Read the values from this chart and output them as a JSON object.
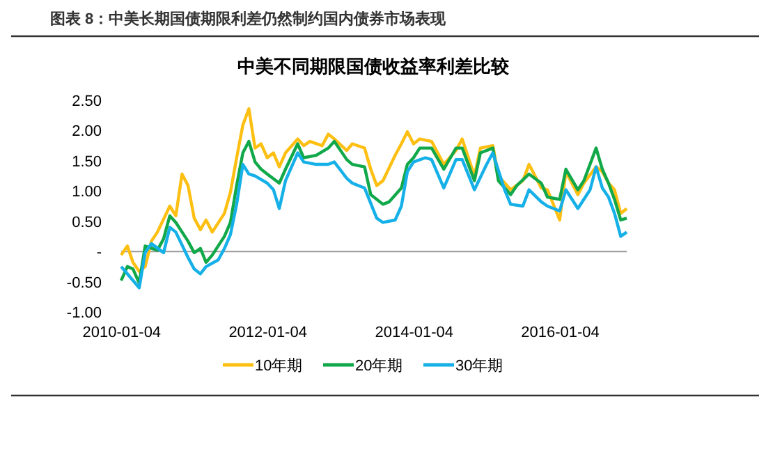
{
  "chart_data": {
    "type": "line",
    "title": "图表 8：中美长期国债期限利差仍然制约国内债券市场表现",
    "subtitle": "中美不同期限国债收益率利差比较",
    "legend": "bottom",
    "xlim": [
      "2010-01",
      "2016-12"
    ],
    "xticks": [
      "2010-01-04",
      "2012-01-04",
      "2014-01-04",
      "2016-01-04"
    ],
    "ylim": [
      -1,
      2.5
    ],
    "yticks": [
      {
        "value": -1,
        "label": "-1.00"
      },
      {
        "value": -0.5,
        "label": "-0.50"
      },
      {
        "value": 0,
        "label": "-"
      },
      {
        "value": 0.5,
        "label": "0.50"
      },
      {
        "value": 1,
        "label": "1.00"
      },
      {
        "value": 1.5,
        "label": "1.50"
      },
      {
        "value": 2,
        "label": "2.00"
      },
      {
        "value": 2.5,
        "label": "2.50"
      }
    ],
    "series": [
      {
        "name": "10年期",
        "color": "#fdbf12",
        "x": [
          "2010-01",
          "2010-02",
          "2010-03",
          "2010-04",
          "2010-05",
          "2010-06",
          "2010-07",
          "2010-09",
          "2010-10",
          "2010-11",
          "2010-12",
          "2011-01",
          "2011-02",
          "2011-03",
          "2011-04",
          "2011-06",
          "2011-07",
          "2011-08",
          "2011-09",
          "2011-10",
          "2011-11",
          "2011-12",
          "2012-01",
          "2012-02",
          "2012-03",
          "2012-04",
          "2012-06",
          "2012-07",
          "2012-08",
          "2012-10",
          "2012-11",
          "2012-12",
          "2013-02",
          "2013-03",
          "2013-05",
          "2013-06",
          "2013-07",
          "2013-08",
          "2013-10",
          "2013-11",
          "2013-12",
          "2014-01",
          "2014-02",
          "2014-04",
          "2014-06",
          "2014-08",
          "2014-09",
          "2014-11",
          "2014-12",
          "2015-02",
          "2015-03",
          "2015-05",
          "2015-07",
          "2015-08",
          "2015-10",
          "2015-11",
          "2016-01",
          "2016-02",
          "2016-04",
          "2016-05",
          "2016-07",
          "2016-08",
          "2016-09",
          "2016-10",
          "2016-11",
          "2016-12"
        ],
        "values": [
          -0.06,
          0.09,
          -0.18,
          -0.33,
          -0.25,
          0.17,
          0.32,
          0.75,
          0.59,
          1.28,
          1.09,
          0.55,
          0.36,
          0.52,
          0.32,
          0.63,
          0.98,
          1.55,
          2.09,
          2.36,
          1.71,
          1.78,
          1.55,
          1.63,
          1.4,
          1.63,
          1.86,
          1.75,
          1.82,
          1.75,
          1.94,
          1.86,
          1.67,
          1.78,
          1.71,
          1.36,
          1.09,
          1.17,
          1.59,
          1.78,
          1.98,
          1.78,
          1.86,
          1.82,
          1.44,
          1.67,
          1.86,
          1.25,
          1.71,
          1.75,
          1.25,
          1.02,
          1.17,
          1.44,
          1.05,
          1.02,
          0.52,
          1.32,
          0.94,
          1.13,
          1.4,
          1.32,
          1.13,
          1.02,
          0.63,
          0.71
        ]
      },
      {
        "name": "20年期",
        "color": "#11a84a",
        "x": [
          "2010-01",
          "2010-02",
          "2010-03",
          "2010-04",
          "2010-05",
          "2010-07",
          "2010-08",
          "2010-09",
          "2010-10",
          "2010-12",
          "2011-01",
          "2011-02",
          "2011-03",
          "2011-04",
          "2011-06",
          "2011-07",
          "2011-08",
          "2011-09",
          "2011-10",
          "2011-11",
          "2011-12",
          "2012-01",
          "2012-03",
          "2012-04",
          "2012-06",
          "2012-07",
          "2012-09",
          "2012-11",
          "2012-12",
          "2013-02",
          "2013-03",
          "2013-05",
          "2013-06",
          "2013-08",
          "2013-09",
          "2013-11",
          "2013-12",
          "2014-01",
          "2014-02",
          "2014-04",
          "2014-06",
          "2014-08",
          "2014-09",
          "2014-11",
          "2014-12",
          "2015-02",
          "2015-03",
          "2015-05",
          "2015-06",
          "2015-08",
          "2015-10",
          "2015-11",
          "2016-01",
          "2016-02",
          "2016-04",
          "2016-05",
          "2016-07",
          "2016-08",
          "2016-09",
          "2016-10",
          "2016-11",
          "2016-12"
        ],
        "values": [
          -0.48,
          -0.25,
          -0.29,
          -0.52,
          0.09,
          0.02,
          0.21,
          0.59,
          0.48,
          0.17,
          -0.02,
          0.05,
          -0.18,
          -0.06,
          0.25,
          0.48,
          1.09,
          1.63,
          1.82,
          1.48,
          1.36,
          1.28,
          1.13,
          1.36,
          1.78,
          1.55,
          1.59,
          1.71,
          1.82,
          1.52,
          1.44,
          1.4,
          0.94,
          0.78,
          0.82,
          1.05,
          1.44,
          1.55,
          1.71,
          1.71,
          1.36,
          1.71,
          1.71,
          1.17,
          1.63,
          1.71,
          1.17,
          0.94,
          1.09,
          1.28,
          1.13,
          0.9,
          0.86,
          1.36,
          1.02,
          1.17,
          1.71,
          1.36,
          1.13,
          0.86,
          0.52,
          0.55
        ]
      },
      {
        "name": "30年期",
        "color": "#16b0e8",
        "x": [
          "2010-01",
          "2010-02",
          "2010-04",
          "2010-05",
          "2010-06",
          "2010-08",
          "2010-09",
          "2010-10",
          "2010-12",
          "2011-01",
          "2011-02",
          "2011-03",
          "2011-05",
          "2011-06",
          "2011-07",
          "2011-08",
          "2011-09",
          "2011-10",
          "2011-11",
          "2012-01",
          "2012-02",
          "2012-03",
          "2012-04",
          "2012-06",
          "2012-07",
          "2012-09",
          "2012-11",
          "2012-12",
          "2013-02",
          "2013-03",
          "2013-05",
          "2013-07",
          "2013-08",
          "2013-10",
          "2013-11",
          "2013-12",
          "2014-01",
          "2014-03",
          "2014-04",
          "2014-06",
          "2014-08",
          "2014-09",
          "2014-11",
          "2015-01",
          "2015-02",
          "2015-04",
          "2015-05",
          "2015-07",
          "2015-08",
          "2015-10",
          "2015-11",
          "2016-01",
          "2016-02",
          "2016-04",
          "2016-06",
          "2016-07",
          "2016-08",
          "2016-09",
          "2016-10",
          "2016-11",
          "2016-12"
        ],
        "values": [
          -0.25,
          -0.37,
          -0.6,
          -0.02,
          0.13,
          -0.02,
          0.4,
          0.32,
          -0.1,
          -0.29,
          -0.37,
          -0.25,
          -0.14,
          0.05,
          0.28,
          0.78,
          1.44,
          1.28,
          1.25,
          1.13,
          1.02,
          0.71,
          1.17,
          1.63,
          1.48,
          1.44,
          1.44,
          1.48,
          1.21,
          1.13,
          1.05,
          0.55,
          0.48,
          0.52,
          0.75,
          1.32,
          1.48,
          1.55,
          1.52,
          1.05,
          1.52,
          1.52,
          1.02,
          1.44,
          1.63,
          1.02,
          0.78,
          0.75,
          1.02,
          0.82,
          0.75,
          0.67,
          1.02,
          0.71,
          1.02,
          1.4,
          1.05,
          0.9,
          0.63,
          0.25,
          0.32
        ]
      }
    ]
  }
}
